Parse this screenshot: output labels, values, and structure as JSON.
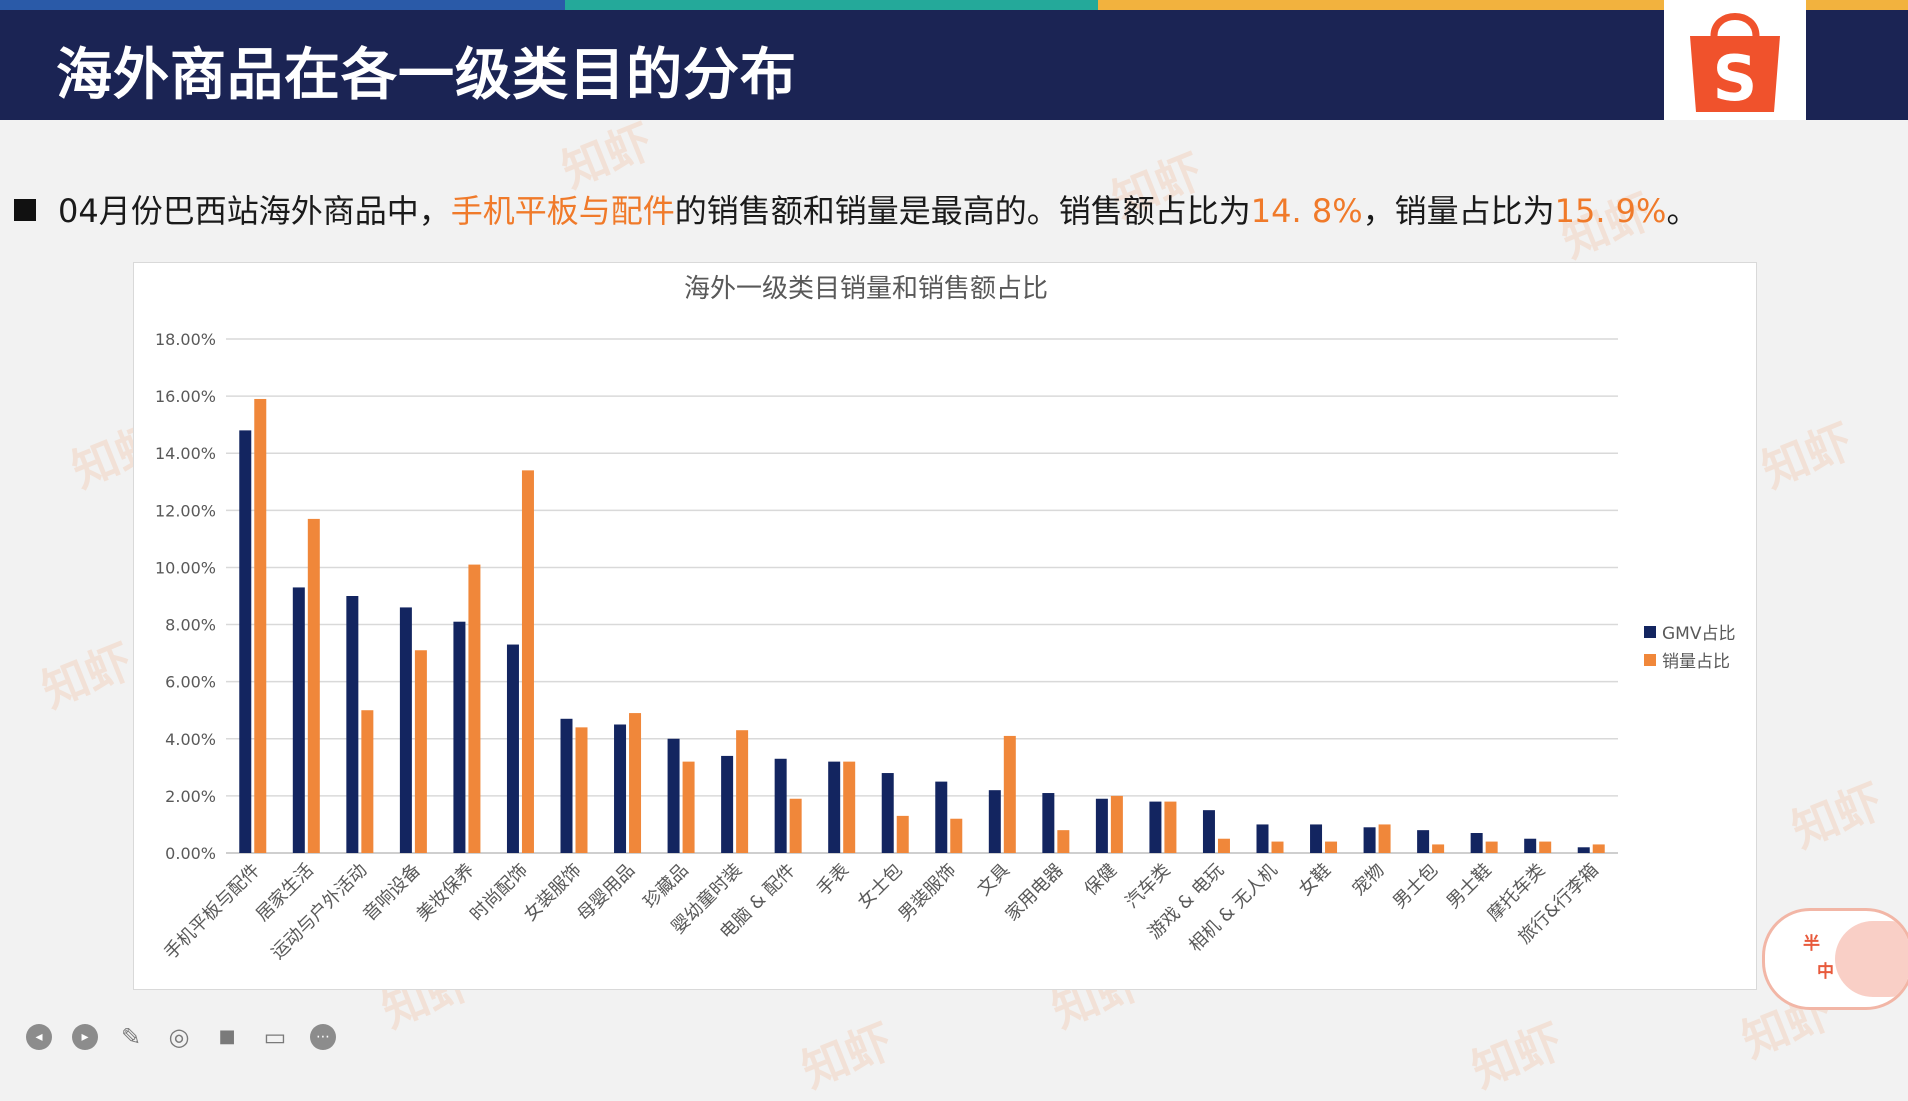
{
  "header": {
    "title": "海外商品在各一级类目的分布",
    "stripe_colors": [
      "#2a5aa8",
      "#24a99a",
      "#f2b23e"
    ],
    "band_color": "#1b2454",
    "logo_color": "#f0522c",
    "logo_letter": "S"
  },
  "intro": {
    "part1": "04月份巴西站海外商品中，",
    "highlight_category": "手机平板与配件",
    "part2": "的销售额和销量是最高的。销售额占比为",
    "gmv_share": "14. 8%",
    "part3": "，销量占比为",
    "sales_share": "15. 9%",
    "part4": "。",
    "highlight_color": "#f07a2a"
  },
  "watermark": {
    "text": "知虾"
  },
  "chart_data": {
    "type": "bar",
    "title": "海外一级类目销量和销售额占比",
    "categories": [
      "手机平板与配件",
      "居家生活",
      "运动与户外活动",
      "音响设备",
      "美妆保养",
      "时尚配饰",
      "女装服饰",
      "母婴用品",
      "珍藏品",
      "婴幼童时装",
      "电脑 & 配件",
      "手表",
      "女士包",
      "男装服饰",
      "文具",
      "家用电器",
      "保健",
      "汽车类",
      "游戏 & 电玩",
      "相机 & 无人机",
      "女鞋",
      "宠物",
      "男士包",
      "男士鞋",
      "摩托车类",
      "旅行&行李箱"
    ],
    "series": [
      {
        "name": "GMV占比",
        "color": "#132560",
        "values": [
          14.8,
          9.3,
          9.0,
          8.6,
          8.1,
          7.3,
          4.7,
          4.5,
          4.0,
          3.4,
          3.3,
          3.2,
          2.8,
          2.5,
          2.2,
          2.1,
          1.9,
          1.8,
          1.5,
          1.0,
          1.0,
          0.9,
          0.8,
          0.7,
          0.5,
          0.2
        ]
      },
      {
        "name": "销量占比",
        "color": "#f0873a",
        "values": [
          15.9,
          11.7,
          5.0,
          7.1,
          10.1,
          13.4,
          4.4,
          4.9,
          3.2,
          4.3,
          1.9,
          3.2,
          1.3,
          1.2,
          4.1,
          0.8,
          2.0,
          1.8,
          0.5,
          0.4,
          0.4,
          1.0,
          0.3,
          0.4,
          0.4,
          0.3
        ]
      }
    ],
    "y_ticks": [
      "0.00%",
      "2.00%",
      "4.00%",
      "6.00%",
      "8.00%",
      "10.00%",
      "12.00%",
      "14.00%",
      "16.00%",
      "18.00%"
    ],
    "ylim": [
      0,
      18
    ],
    "grid": true,
    "legend_position": "right"
  },
  "mascot": {
    "text1": "半",
    "text2": "中"
  },
  "toolbar": {
    "icons": [
      "prev-icon",
      "next-icon",
      "pen-icon",
      "screenshot-icon",
      "video-icon",
      "comment-icon",
      "more-icon"
    ],
    "glyphs": [
      "◂",
      "▸",
      "✎",
      "◎",
      "■",
      "▭",
      "⋯"
    ]
  }
}
